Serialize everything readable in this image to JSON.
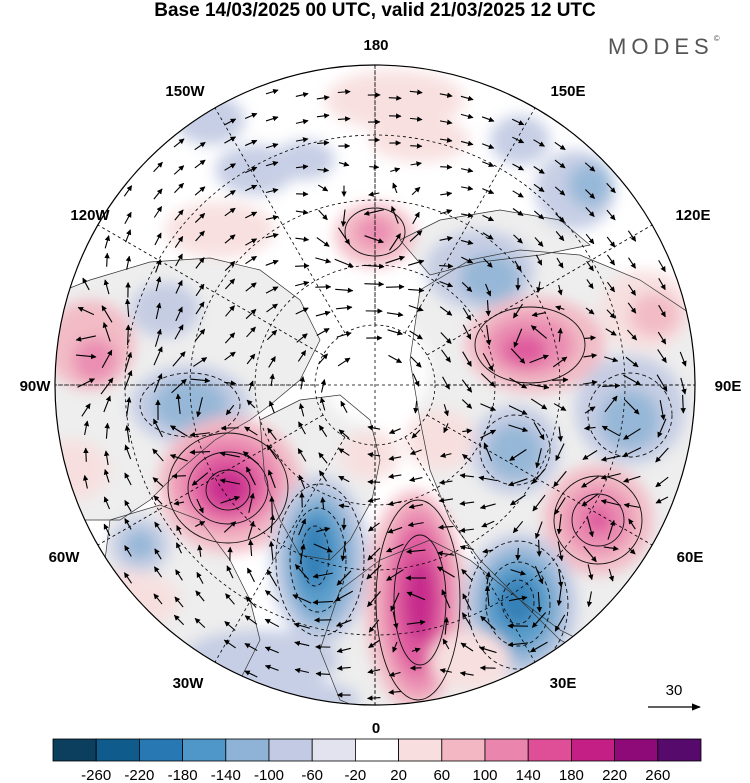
{
  "title": "Base 14/03/2025 00 UTC, valid 21/03/2025 12 UTC",
  "brand": "MODES",
  "brand_mark": "©",
  "longitude_labels": {
    "n180": "180",
    "n150w": "150W",
    "n150e": "150E",
    "n120w": "120W",
    "n120e": "120E",
    "n90w": "90W",
    "n90e": "90E",
    "n60w": "60W",
    "n60e": "60E",
    "n30w": "30W",
    "n30e": "30E",
    "n0": "0"
  },
  "reference_vector": {
    "label": "30"
  },
  "colorbar": {
    "ticks": [
      "-260",
      "-220",
      "-180",
      "-140",
      "-100",
      "-60",
      "-20",
      "20",
      "60",
      "100",
      "140",
      "180",
      "220",
      "260"
    ],
    "colors": [
      "#0c3e5e",
      "#0f5c8c",
      "#2878b4",
      "#4f97c8",
      "#8fb3d6",
      "#c2cbe3",
      "#e3e3f0",
      "#ffffff",
      "#f8dede",
      "#f2b7c2",
      "#ea86ad",
      "#de4f98",
      "#c41f85",
      "#8e0a79",
      "#560a6b"
    ]
  },
  "colors": {
    "land": "#eeeeee",
    "ocean": "#ffffff",
    "coast": "#333333",
    "grid": "#000000"
  }
}
